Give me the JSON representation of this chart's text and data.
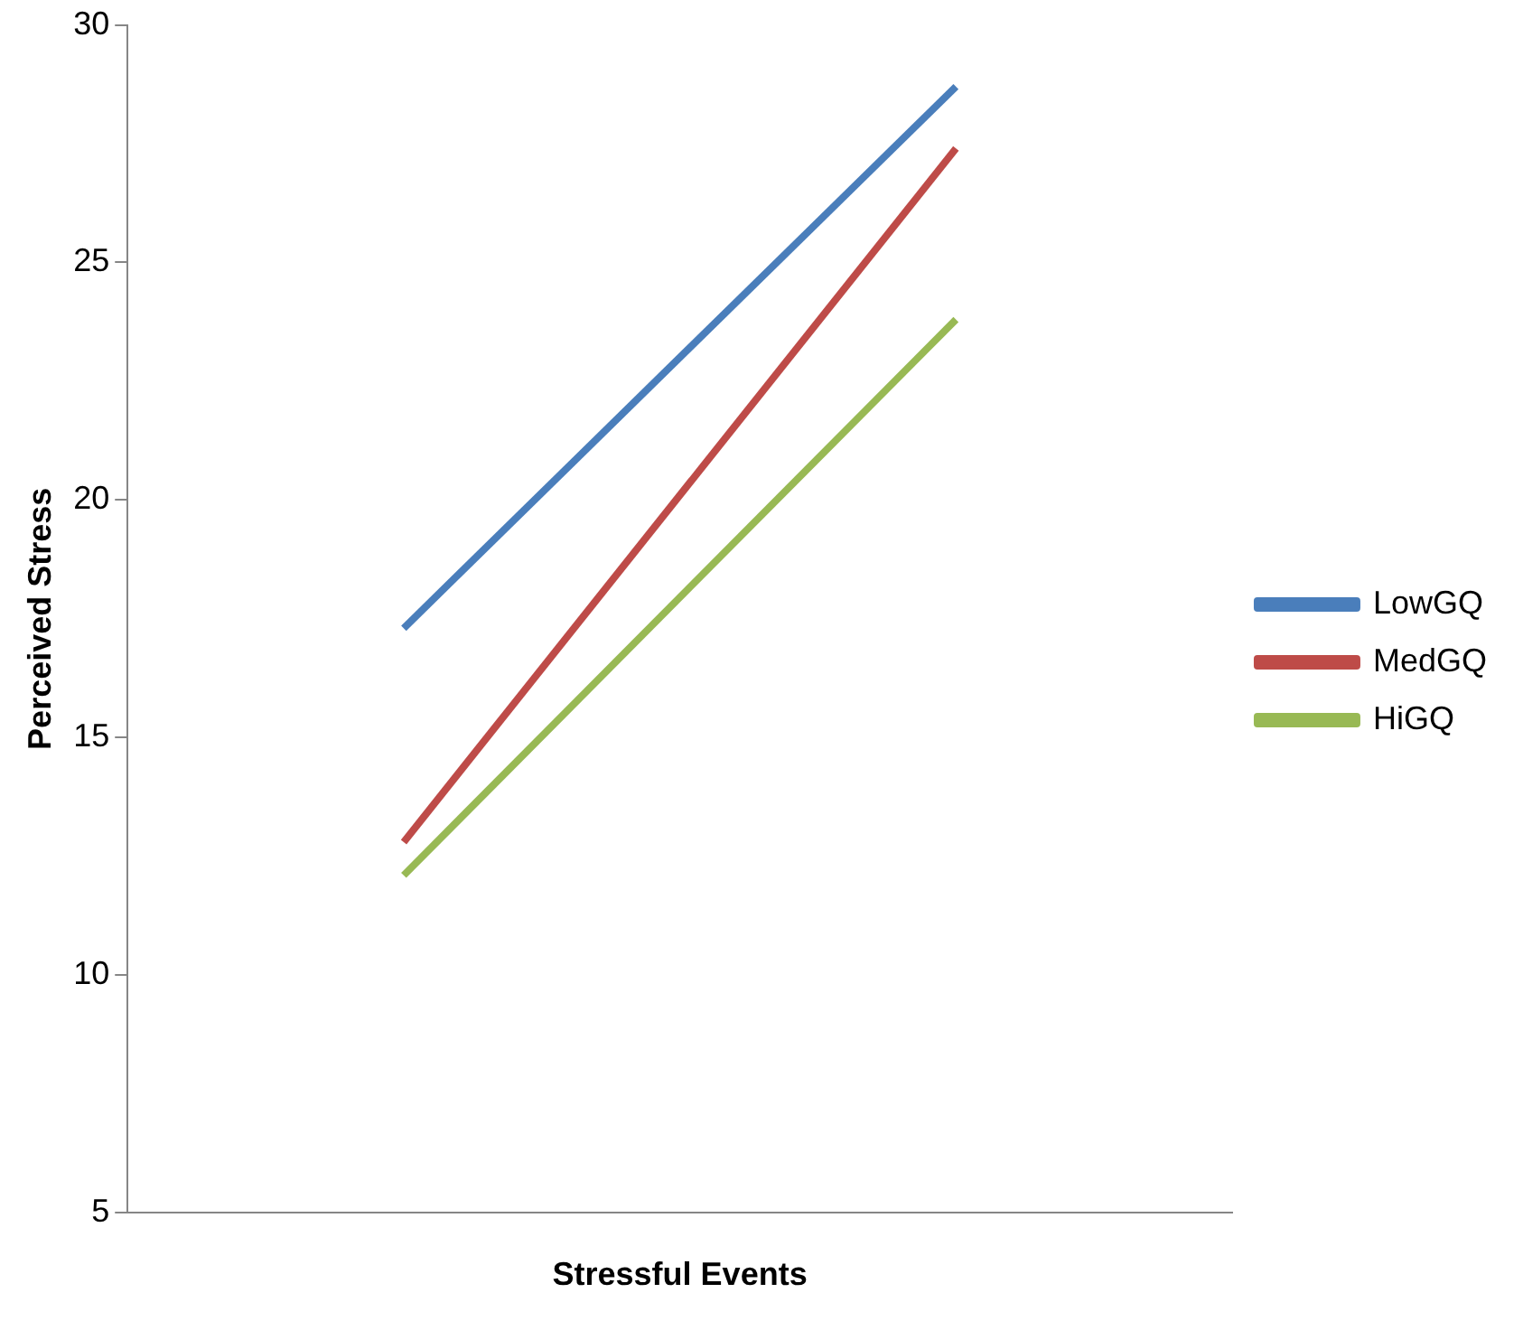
{
  "chart_data": {
    "type": "line",
    "xlabel": "Stressful Events",
    "ylabel": "Perceived Stress",
    "categories": [
      null,
      null
    ],
    "series": [
      {
        "name": "LowGQ",
        "color": "#4a7ebb",
        "values": [
          17.3,
          28.7
        ]
      },
      {
        "name": "MedGQ",
        "color": "#be4b48",
        "values": [
          12.8,
          27.4
        ]
      },
      {
        "name": "HiGQ",
        "color": "#98b954",
        "values": [
          12.1,
          23.8
        ]
      }
    ],
    "ylim": [
      5,
      30
    ],
    "yticks": [
      5,
      10,
      15,
      20,
      25,
      30
    ],
    "grid": false,
    "legend": "right",
    "marker": "none",
    "line_style": "solid"
  }
}
